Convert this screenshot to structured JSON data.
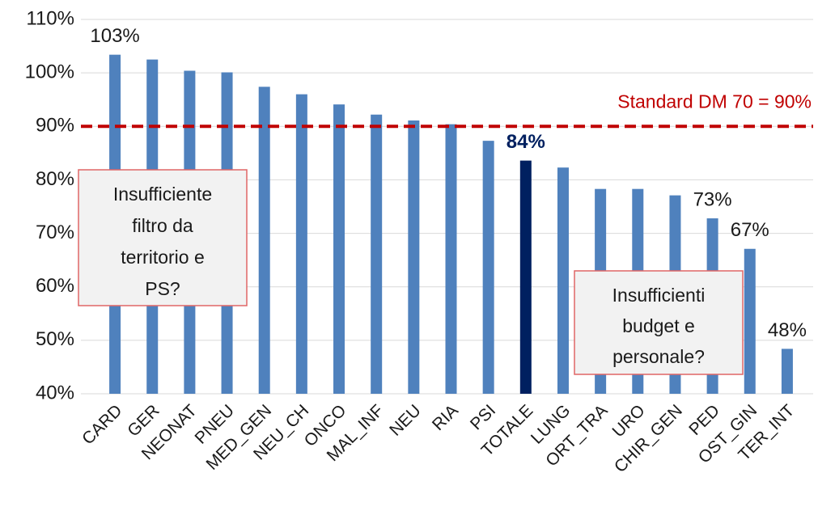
{
  "chart_data": {
    "type": "bar",
    "categories": [
      "CARD",
      "GER",
      "NEONAT",
      "PNEU",
      "MED_GEN",
      "NEU_CH",
      "ONCO",
      "MAL_INF",
      "NEU",
      "RIA",
      "PSI",
      "TOTALE",
      "LUNG",
      "ORT_TRA",
      "URO",
      "CHIR_GEN",
      "PED",
      "OST_GIN",
      "TER_INT"
    ],
    "values": [
      103.4,
      102.5,
      100.4,
      100.1,
      97.4,
      96,
      94.1,
      92.2,
      91.1,
      90.4,
      87.3,
      83.6,
      82.3,
      78.3,
      78.3,
      77.1,
      72.8,
      67.1,
      48.4
    ],
    "value_labels": [
      "103%",
      null,
      null,
      null,
      null,
      null,
      null,
      null,
      null,
      null,
      null,
      "84%",
      null,
      null,
      null,
      null,
      "73%",
      "67%",
      "48%"
    ],
    "colors": [
      "#4f81bd",
      "#4f81bd",
      "#4f81bd",
      "#4f81bd",
      "#4f81bd",
      "#4f81bd",
      "#4f81bd",
      "#4f81bd",
      "#4f81bd",
      "#4f81bd",
      "#4f81bd",
      "#002060",
      "#4f81bd",
      "#4f81bd",
      "#4f81bd",
      "#4f81bd",
      "#4f81bd",
      "#4f81bd",
      "#4f81bd"
    ],
    "ylim": [
      40,
      110
    ],
    "yticks": [
      {
        "value": 40,
        "label": "40%"
      },
      {
        "value": 50,
        "label": "50%"
      },
      {
        "value": 60,
        "label": "60%"
      },
      {
        "value": 70,
        "label": "70%"
      },
      {
        "value": 80,
        "label": "80%"
      },
      {
        "value": 90,
        "label": "90%"
      },
      {
        "value": 100,
        "label": "100%"
      },
      {
        "value": 110,
        "label": "110%"
      }
    ],
    "grid": true,
    "reference_line": {
      "value": 90,
      "label": "Standard DM 70 = 90%",
      "color": "#c00000"
    },
    "annotations": [
      {
        "lines": [
          "Insufficiente",
          "filtro da",
          "territorio e",
          "PS?"
        ]
      },
      {
        "lines": [
          "Insufficienti",
          "budget e",
          "personale?"
        ]
      }
    ]
  }
}
